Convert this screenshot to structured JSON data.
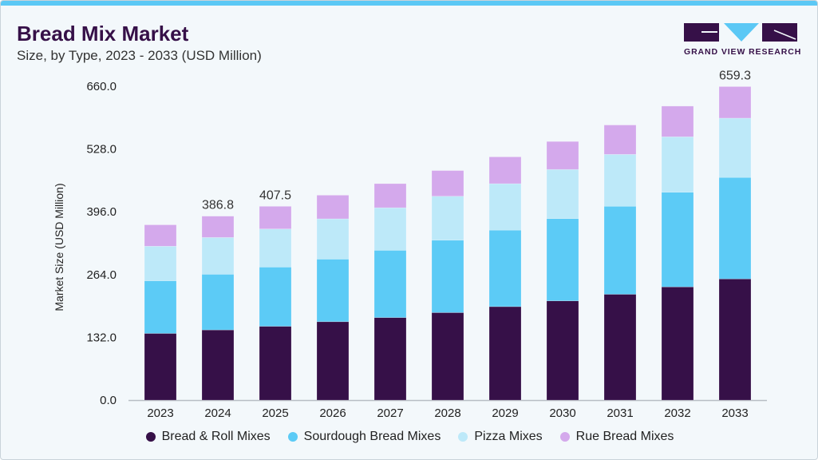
{
  "header": {
    "title": "Bread Mix Market",
    "subtitle": "Size, by Type, 2023 - 2033 (USD Million)",
    "logo_text": "GRAND VIEW RESEARCH"
  },
  "colors": {
    "accent": "#5bc8f5",
    "brand": "#361048"
  },
  "chart_data": {
    "type": "bar",
    "stacked": true,
    "title": "Bread Mix Market",
    "subtitle": "Size, by Type, 2023 - 2033 (USD Million)",
    "xlabel": "",
    "ylabel": "Market Size (USD Million)",
    "ylim": [
      0,
      660
    ],
    "yticks": [
      "0.0",
      "132.0",
      "264.0",
      "396.0",
      "528.0",
      "660.0"
    ],
    "grid": false,
    "legend_position": "bottom",
    "categories": [
      "2023",
      "2024",
      "2025",
      "2026",
      "2027",
      "2028",
      "2029",
      "2030",
      "2031",
      "2032",
      "2033"
    ],
    "series": [
      {
        "name": "Bread & Roll Mixes",
        "color": "#361048",
        "values": [
          140.2,
          147.6,
          155.2,
          164.9,
          173.6,
          184.0,
          196.6,
          208.7,
          222.5,
          238.1,
          254.9
        ]
      },
      {
        "name": "Sourdough Bread Mixes",
        "color": "#5ccbf6",
        "values": [
          110.7,
          117.1,
          124.6,
          131.5,
          141.4,
          152.3,
          160.9,
          173.0,
          185.2,
          199.0,
          213.4
        ]
      },
      {
        "name": "Pizza Mixes",
        "color": "#bde9f9",
        "values": [
          72.7,
          77.3,
          80.1,
          84.8,
          89.5,
          92.4,
          97.6,
          103.3,
          109.0,
          116.6,
          124.6
        ]
      },
      {
        "name": "Rue Bread Mixes",
        "color": "#d4a9ec",
        "values": [
          45.0,
          44.8,
          47.6,
          49.7,
          50.7,
          54.0,
          56.4,
          58.8,
          61.8,
          64.5,
          66.4
        ]
      }
    ],
    "data_labels": [
      {
        "category": "2024",
        "text": "386.8"
      },
      {
        "category": "2025",
        "text": "407.5"
      },
      {
        "category": "2033",
        "text": "659.3"
      }
    ]
  }
}
